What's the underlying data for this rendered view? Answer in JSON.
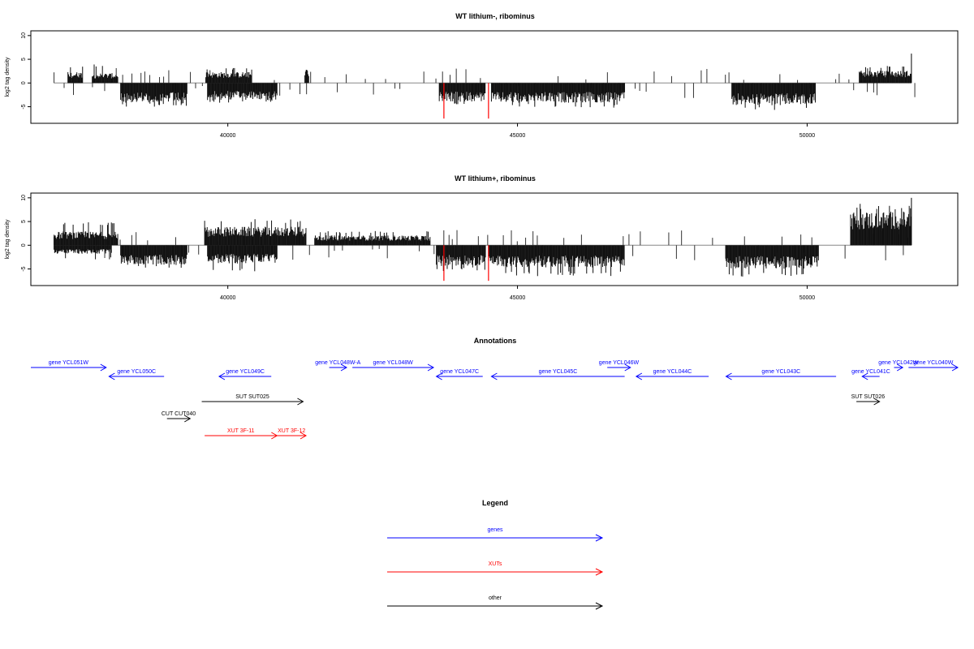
{
  "chart_data": [
    {
      "type": "bar",
      "title": "WT lithium-, ribominus",
      "ylabel": "log2 tag density",
      "xlim": [
        36600,
        52600
      ],
      "ylim": [
        -8.5,
        11
      ],
      "xticks": [
        40000,
        45000,
        50000
      ],
      "xtick_labels": [
        "40000",
        "45000",
        "50000"
      ],
      "yticks": [
        -5,
        0,
        5,
        10
      ],
      "ytick_labels": [
        "-5",
        "0",
        "5",
        "10"
      ],
      "baseline_range": [
        37000,
        51800
      ],
      "signal_segments": [
        {
          "start": 37240,
          "end": 37500,
          "strand": "+",
          "level": 1.8,
          "max": 3.8
        },
        {
          "start": 37660,
          "end": 38100,
          "strand": "+",
          "level": 1.6,
          "max": 4.0
        },
        {
          "start": 38150,
          "end": 39300,
          "strand": "-",
          "level": 3.2,
          "max": 5.0
        },
        {
          "start": 39620,
          "end": 40420,
          "strand": "+",
          "level": 1.8,
          "max": 3.2
        },
        {
          "start": 39650,
          "end": 40850,
          "strand": "-",
          "level": 2.8,
          "max": 4.2
        },
        {
          "start": 41330,
          "end": 41400,
          "strand": "+",
          "level": 2.4,
          "max": 2.8
        },
        {
          "start": 43650,
          "end": 44450,
          "strand": "-",
          "level": 3.0,
          "max": 4.5
        },
        {
          "start": 44550,
          "end": 46850,
          "strand": "-",
          "level": 3.2,
          "max": 5.2
        },
        {
          "start": 48700,
          "end": 50150,
          "strand": "-",
          "level": 3.6,
          "max": 6.0
        },
        {
          "start": 50900,
          "end": 51800,
          "strand": "+",
          "level": 2.0,
          "max": 3.6
        }
      ],
      "sparse_regions": [
        [
          37000,
          52000
        ]
      ],
      "highlight_positions": [
        43730,
        44500
      ],
      "highlight_depth": -7.5,
      "max_point": {
        "x": 51800,
        "y": 6.2
      }
    },
    {
      "type": "bar",
      "title": "WT lithium+, ribominus",
      "ylabel": "log2 tag density",
      "xlim": [
        36600,
        52600
      ],
      "ylim": [
        -8.5,
        11
      ],
      "xticks": [
        40000,
        45000,
        50000
      ],
      "xtick_labels": [
        "40000",
        "45000",
        "50000"
      ],
      "yticks": [
        -5,
        0,
        5,
        10
      ],
      "ytick_labels": [
        "-5",
        "0",
        "5",
        "10"
      ],
      "baseline_range": [
        37000,
        51800
      ],
      "signal_segments": [
        {
          "start": 37000,
          "end": 38100,
          "strand": "+",
          "level": 2.2,
          "max": 5.0
        },
        {
          "start": 37000,
          "end": 38000,
          "strand": "-",
          "level": 1.4,
          "max": 3.0
        },
        {
          "start": 38150,
          "end": 39300,
          "strand": "-",
          "level": 3.2,
          "max": 5.0
        },
        {
          "start": 39600,
          "end": 41350,
          "strand": "+",
          "level": 3.0,
          "max": 5.5
        },
        {
          "start": 39650,
          "end": 40850,
          "strand": "-",
          "level": 3.0,
          "max": 5.8
        },
        {
          "start": 41500,
          "end": 43500,
          "strand": "+",
          "level": 1.6,
          "max": 3.0
        },
        {
          "start": 43600,
          "end": 44450,
          "strand": "-",
          "level": 3.4,
          "max": 5.5
        },
        {
          "start": 44500,
          "end": 46850,
          "strand": "-",
          "level": 3.6,
          "max": 6.5
        },
        {
          "start": 48600,
          "end": 50200,
          "strand": "-",
          "level": 3.8,
          "max": 6.6
        },
        {
          "start": 50750,
          "end": 51800,
          "strand": "+",
          "level": 5.5,
          "max": 8.8
        }
      ],
      "sparse_regions": [
        [
          37000,
          52000
        ]
      ],
      "highlight_positions": [
        43730,
        44500
      ],
      "highlight_depth": -7.5,
      "max_point": {
        "x": 51800,
        "y": 10.0
      }
    }
  ],
  "annotations": {
    "title": "Annotations",
    "features": [
      {
        "label": "gene YCL051W",
        "start": 36200,
        "end": 37900,
        "row": 0,
        "color": "#0000ff",
        "dir": "right"
      },
      {
        "label": "gene YCL050C",
        "start": 37950,
        "end": 38900,
        "row": 1,
        "color": "#0000ff",
        "dir": "left"
      },
      {
        "label": "gene YCL049C",
        "start": 39850,
        "end": 40750,
        "row": 1,
        "color": "#0000ff",
        "dir": "left"
      },
      {
        "label": "gene YCL048W-A",
        "start": 41750,
        "end": 42050,
        "row": 0,
        "color": "#0000ff",
        "dir": "right"
      },
      {
        "label": "gene YCL048W",
        "start": 42150,
        "end": 43550,
        "row": 0,
        "color": "#0000ff",
        "dir": "right"
      },
      {
        "label": "gene YCL047C",
        "start": 43600,
        "end": 44400,
        "row": 1,
        "color": "#0000ff",
        "dir": "left"
      },
      {
        "label": "gene YCL045C",
        "start": 44550,
        "end": 46850,
        "row": 1,
        "color": "#0000ff",
        "dir": "left"
      },
      {
        "label": "gene YCL046W",
        "start": 46550,
        "end": 46950,
        "row": 0,
        "color": "#0000ff",
        "dir": "right"
      },
      {
        "label": "gene YCL044C",
        "start": 47050,
        "end": 48300,
        "row": 1,
        "color": "#0000ff",
        "dir": "left"
      },
      {
        "label": "gene YCL043C",
        "start": 48600,
        "end": 50500,
        "row": 1,
        "color": "#0000ff",
        "dir": "left"
      },
      {
        "label": "gene YCL041C",
        "start": 50950,
        "end": 51250,
        "row": 1,
        "color": "#0000ff",
        "dir": "left"
      },
      {
        "label": "gene YCL042W",
        "start": 51500,
        "end": 51650,
        "row": 0,
        "color": "#0000ff",
        "dir": "right"
      },
      {
        "label": "gene YCL040W",
        "start": 51750,
        "end": 52600,
        "row": 0,
        "color": "#0000ff",
        "dir": "right"
      },
      {
        "label": "SUT SUT025",
        "start": 39550,
        "end": 41300,
        "row": 2,
        "color": "#000000",
        "dir": "right"
      },
      {
        "label": "SUT SUT026",
        "start": 50850,
        "end": 51250,
        "row": 2,
        "color": "#000000",
        "dir": "right"
      },
      {
        "label": "CUT CUT040",
        "start": 38950,
        "end": 39350,
        "row": 3,
        "color": "#000000",
        "dir": "right"
      },
      {
        "label": "XUT 3F-11",
        "start": 39600,
        "end": 40850,
        "row": 4,
        "color": "#ff0000",
        "dir": "right"
      },
      {
        "label": "XUT 3F-12",
        "start": 40850,
        "end": 41350,
        "row": 4,
        "color": "#ff0000",
        "dir": "right"
      }
    ]
  },
  "legend": {
    "title": "Legend",
    "items": [
      {
        "label": "genes",
        "color": "#0000ff"
      },
      {
        "label": "XUTs",
        "color": "#ff0000"
      },
      {
        "label": "other",
        "color": "#000000"
      }
    ]
  }
}
